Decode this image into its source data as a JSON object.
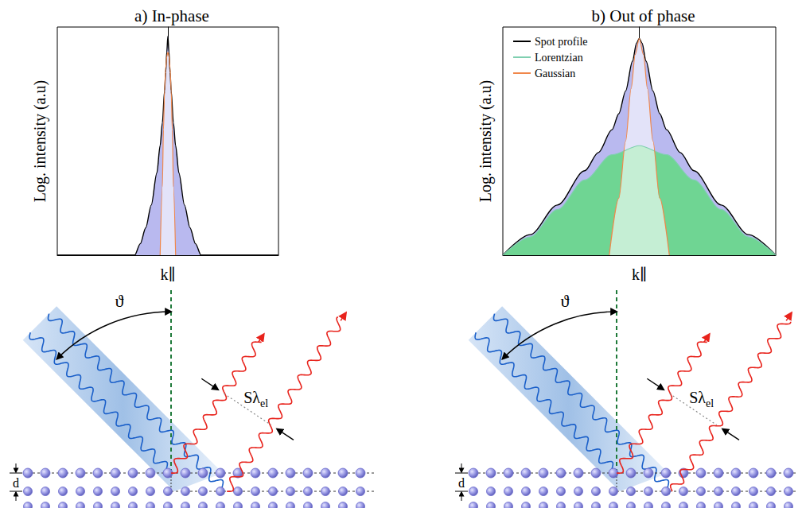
{
  "chart_data": [
    {
      "type": "line",
      "title": "a) In-phase",
      "xlabel": "k∥",
      "ylabel": "Log. intensity (a.u)",
      "xlim": [
        -1,
        1
      ],
      "ylim": [
        0,
        1
      ],
      "xticks": [],
      "yticks": [],
      "tick_labels": false,
      "grid": false,
      "series": [
        {
          "name": "Spot profile",
          "color": "#000000",
          "x": [
            -1,
            -0.3,
            -0.25,
            -0.2,
            -0.15,
            -0.1,
            -0.07,
            -0.05,
            -0.03,
            -0.02,
            -0.01,
            0,
            0.01,
            0.02,
            0.03,
            0.05,
            0.07,
            0.1,
            0.15,
            0.2,
            0.25,
            0.3,
            1
          ],
          "values": [
            0,
            0,
            0.05,
            0.12,
            0.22,
            0.36,
            0.48,
            0.58,
            0.72,
            0.8,
            0.89,
            0.96,
            0.89,
            0.8,
            0.72,
            0.58,
            0.48,
            0.36,
            0.22,
            0.12,
            0.05,
            0,
            0
          ]
        },
        {
          "name": "Gaussian",
          "color": "#f0874a",
          "x": [
            -0.07,
            -0.05,
            -0.04,
            -0.03,
            -0.02,
            -0.01,
            0,
            0.01,
            0.02,
            0.03,
            0.04,
            0.05,
            0.07
          ],
          "values": [
            0,
            0.3,
            0.55,
            0.72,
            0.82,
            0.87,
            0.89,
            0.87,
            0.82,
            0.72,
            0.55,
            0.3,
            0
          ]
        }
      ]
    },
    {
      "type": "line",
      "title": "b) Out of phase",
      "xlabel": "k∥",
      "ylabel": "Log. intensity (a.u)",
      "xlim": [
        -1,
        1
      ],
      "ylim": [
        0,
        1
      ],
      "xticks": [],
      "yticks": [],
      "tick_labels": false,
      "grid": false,
      "legend": "upper left",
      "series": [
        {
          "name": "Spot profile",
          "color": "#000000",
          "x": [
            -1,
            -0.8,
            -0.6,
            -0.4,
            -0.3,
            -0.2,
            -0.15,
            -0.1,
            -0.05,
            -0.02,
            0,
            0.02,
            0.05,
            0.1,
            0.15,
            0.2,
            0.3,
            0.4,
            0.6,
            0.8,
            1
          ],
          "values": [
            0,
            0.09,
            0.22,
            0.37,
            0.45,
            0.55,
            0.62,
            0.72,
            0.85,
            0.93,
            0.95,
            0.93,
            0.85,
            0.72,
            0.62,
            0.55,
            0.45,
            0.37,
            0.22,
            0.09,
            0
          ]
        },
        {
          "name": "Lorentzian",
          "color": "#7fcfb0",
          "x": [
            -1,
            -0.8,
            -0.6,
            -0.4,
            -0.2,
            0,
            0.2,
            0.4,
            0.6,
            0.8,
            1
          ],
          "values": [
            0,
            0.08,
            0.2,
            0.33,
            0.44,
            0.48,
            0.44,
            0.33,
            0.2,
            0.08,
            0
          ]
        },
        {
          "name": "Gaussian",
          "color": "#f0874a",
          "x": [
            -0.22,
            -0.15,
            -0.1,
            -0.06,
            -0.03,
            0,
            0.03,
            0.06,
            0.1,
            0.15,
            0.22
          ],
          "values": [
            0,
            0.25,
            0.5,
            0.73,
            0.88,
            0.95,
            0.88,
            0.73,
            0.5,
            0.25,
            0
          ]
        }
      ]
    }
  ],
  "diagram": [
    {
      "angle": "ϑ",
      "path_difference": "Sλ",
      "path_difference_subscript": "el",
      "spacing": "d"
    },
    {
      "angle": "ϑ",
      "path_difference": "Sλ",
      "path_difference_subscript": "el",
      "spacing": "d"
    }
  ]
}
